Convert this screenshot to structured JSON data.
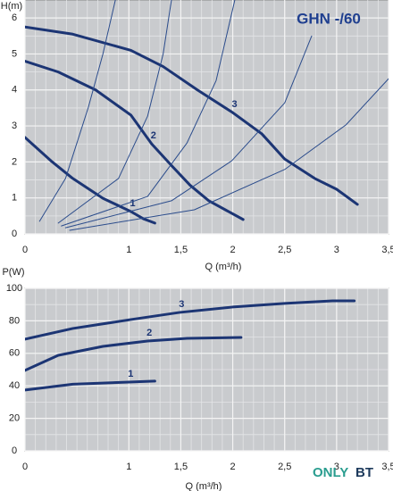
{
  "chart_data": [
    {
      "type": "line",
      "title": "GHN -/60",
      "ylabel": "H(m)",
      "xlabel": "Q (m³/h)",
      "xlim": [
        0,
        3.5
      ],
      "ylim": [
        0,
        6.5
      ],
      "xticks": [
        0,
        1,
        {
          "value": 1.5,
          "label": "1,5"
        },
        2,
        {
          "value": 2.5,
          "label": "2,5"
        },
        3,
        {
          "value": 3.5,
          "label": "3,5"
        }
      ],
      "yticks": [
        0,
        1,
        2,
        3,
        4,
        5,
        6
      ],
      "x_minor_step": 0.1,
      "y_minor_step": 0.5,
      "grid": true,
      "series": [
        {
          "name": "1",
          "color": "#1c3574",
          "width": 3,
          "x": [
            0,
            0.25,
            0.46,
            0.75,
            1.02,
            1.14,
            1.25
          ],
          "values": [
            2.68,
            2.03,
            1.54,
            0.99,
            0.62,
            0.42,
            0.3
          ]
        },
        {
          "name": "2",
          "color": "#1c3574",
          "width": 3,
          "x": [
            0,
            0.32,
            0.68,
            1.02,
            1.22,
            1.41,
            1.59,
            1.77,
            2.1
          ],
          "values": [
            4.8,
            4.5,
            4.0,
            3.3,
            2.5,
            1.9,
            1.35,
            0.92,
            0.4
          ]
        },
        {
          "name": "3",
          "color": "#1c3574",
          "width": 3,
          "x": [
            0,
            0.46,
            1.02,
            1.33,
            1.66,
            2,
            2.28,
            2.5,
            2.79,
            3,
            3.2
          ],
          "values": [
            5.75,
            5.55,
            5.1,
            4.65,
            4.0,
            3.37,
            2.78,
            2.08,
            1.54,
            1.24,
            0.82
          ]
        },
        {
          "color": "#2b4c8c",
          "width": 1,
          "x": [
            0.14,
            0.39,
            0.61,
            0.75,
            0.87
          ],
          "values": [
            0.35,
            1.54,
            3.52,
            5.0,
            6.5
          ]
        },
        {
          "color": "#2b4c8c",
          "width": 1,
          "x": [
            0.32,
            0.9,
            1.18,
            1.33,
            1.41
          ],
          "values": [
            0.3,
            1.54,
            3.27,
            5.0,
            6.5
          ]
        },
        {
          "color": "#2b4c8c",
          "width": 1,
          "x": [
            0.35,
            1.18,
            1.56,
            1.84,
            2.02
          ],
          "values": [
            0.22,
            1.04,
            2.53,
            4.26,
            6.5
          ]
        },
        {
          "color": "#2b4c8c",
          "width": 1,
          "x": [
            0.39,
            1.41,
            1.99,
            2.5,
            2.76
          ],
          "values": [
            0.17,
            0.92,
            2.03,
            3.64,
            5.5
          ]
        },
        {
          "color": "#2b4c8c",
          "width": 1,
          "x": [
            0.43,
            1.63,
            2.5,
            3.09,
            3.5
          ],
          "values": [
            0.1,
            0.67,
            1.79,
            3.03,
            4.31
          ]
        }
      ]
    },
    {
      "type": "line",
      "ylabel": "P(W)",
      "xlabel": "Q (m³/h)",
      "xlim": [
        0,
        3.5
      ],
      "ylim": [
        0,
        100
      ],
      "xticks": [
        0,
        1,
        {
          "value": 1.5,
          "label": "1,5"
        },
        2,
        {
          "value": 2.5,
          "label": "2,5"
        },
        3,
        {
          "value": 3.5,
          "label": "3,5"
        }
      ],
      "yticks": [
        0,
        20,
        40,
        60,
        80,
        100
      ],
      "x_minor_step": 0.1,
      "y_minor_step": 10,
      "grid": true,
      "series": [
        {
          "name": "1",
          "color": "#1c3574",
          "width": 3,
          "x": [
            0,
            0.46,
            1,
            1.25
          ],
          "values": [
            37.4,
            41,
            42.3,
            42.9
          ]
        },
        {
          "name": "2",
          "color": "#1c3574",
          "width": 3,
          "x": [
            0,
            0.32,
            0.75,
            1.18,
            1.56,
            2.08
          ],
          "values": [
            49.5,
            58.8,
            64.3,
            67.6,
            69.2,
            69.8
          ]
        },
        {
          "name": "3",
          "color": "#1c3574",
          "width": 3,
          "x": [
            0,
            0.46,
            1.02,
            1.49,
            2,
            2.5,
            2.96,
            3.17
          ],
          "values": [
            68.7,
            75.3,
            80.8,
            85.2,
            88.5,
            90.7,
            92.3,
            92.3
          ]
        }
      ]
    }
  ],
  "watermark": {
    "part1": "ONLY",
    "part2": "BT"
  }
}
